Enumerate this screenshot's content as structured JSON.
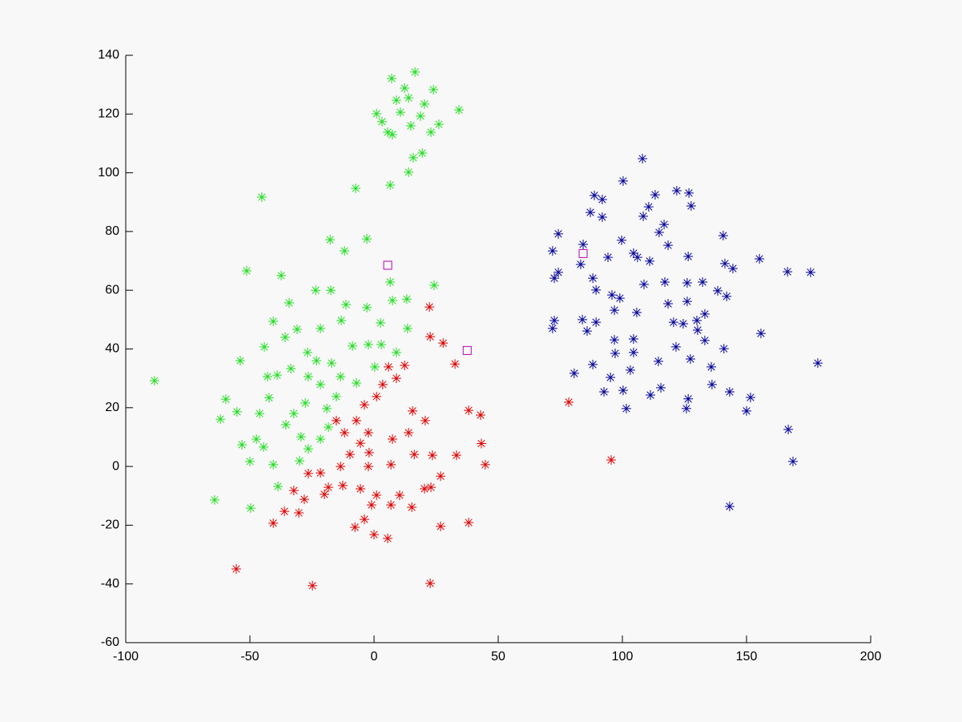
{
  "chart_data": {
    "type": "scatter",
    "xlim": [
      -100,
      200
    ],
    "ylim": [
      -60,
      140
    ],
    "xticks": [
      -100,
      -50,
      0,
      50,
      100,
      150,
      200
    ],
    "yticks": [
      -60,
      -40,
      -20,
      0,
      20,
      40,
      60,
      80,
      100,
      120,
      140
    ],
    "grid": false,
    "series": [
      {
        "color": "#22dd22",
        "marker": "star",
        "x": [
          16.5,
          7.1,
          23.9,
          34.2,
          1,
          3.2,
          7.4,
          13.9,
          20.3,
          14.8,
          19.4,
          15.8,
          13.9,
          -7.4,
          6.5,
          -45.2,
          26.1,
          10.6,
          18.7,
          12.3,
          5.5,
          22.9,
          9,
          -88.4,
          -64.2,
          -49.7,
          -51.3,
          -17.7,
          -2.9,
          -11.9,
          -37.4,
          -34.2,
          -23.5,
          -17.4,
          6.5,
          24.2,
          13.2,
          7.4,
          -2.9,
          -11.3,
          -40.6,
          -31,
          -21.6,
          -13.2,
          2.6,
          13.5,
          -53.9,
          -44.2,
          -35.8,
          -26.8,
          -17.1,
          -8.7,
          -2.3,
          9,
          -59.7,
          -61.9,
          -55.2,
          -53.2,
          -50,
          -42.3,
          -39,
          -42.9,
          -46.1,
          -44.5,
          -40.6,
          -38.7,
          -35.5,
          -32.3,
          -27.7,
          -26.5,
          -21.6,
          -19,
          -15.2,
          -13.5,
          -29.4,
          -30,
          -26.5,
          -21.6,
          -18.4,
          -7.1,
          0.3,
          2.9,
          -47.4,
          -33.5,
          -23.2
        ],
        "values": [
          134.3,
          132.1,
          128.3,
          121.4,
          120.1,
          117.4,
          113,
          125.5,
          123.4,
          116,
          106.7,
          105.1,
          100.2,
          94.7,
          95.8,
          91.7,
          116.5,
          120.6,
          119.3,
          128.8,
          113.8,
          113.8,
          124.7,
          29.2,
          -11.4,
          -14.2,
          66.6,
          77.2,
          77.5,
          73.4,
          65,
          55.7,
          60,
          60,
          62.8,
          61.7,
          57,
          56.5,
          54.1,
          55.1,
          49.4,
          46.7,
          47,
          49.7,
          48.9,
          47,
          36,
          40.7,
          44,
          38.8,
          35.2,
          41,
          41.5,
          38.8,
          22.9,
          16.1,
          18.6,
          7.4,
          1.7,
          23.4,
          31.1,
          30.6,
          18,
          6.6,
          0.6,
          -6.8,
          14.2,
          18,
          21.6,
          30.6,
          27.9,
          19.7,
          23.8,
          30.6,
          10.1,
          1.9,
          6,
          9.3,
          13.4,
          28.4,
          33.9,
          41.5,
          9.3,
          33.3,
          36
        ]
      },
      {
        "color": "#dd0000",
        "marker": "star",
        "x": [
          -55.5,
          -24.8,
          22.6,
          38.1,
          26.8,
          -40.6,
          44.8,
          43.2,
          42.9,
          38.1,
          32.6,
          22.3,
          22.6,
          27.8,
          78.4,
          95.5,
          26.8,
          33.2,
          23.5,
          20.6,
          15.5,
          9,
          5.8,
          12.3,
          3.5,
          1,
          -3.9,
          -7.1,
          -2.3,
          -5.5,
          -11.9,
          -15.2,
          -9.7,
          -2,
          7.4,
          13.9,
          16.2,
          6.8,
          -2.3,
          -13.5,
          -21.6,
          -26.5,
          -32.3,
          -28.1,
          -18.4,
          -12.6,
          -5.5,
          1,
          10.3,
          15.2,
          20.3,
          6.8,
          -1,
          -3.9,
          -7.7,
          0,
          5.5,
          -36.1,
          -30.3,
          -20,
          22.9
        ],
        "values": [
          -34.9,
          -40.6,
          -39.8,
          -19.1,
          -20.4,
          -19.3,
          0.6,
          7.8,
          17.5,
          19.1,
          34.9,
          54.3,
          44.2,
          42,
          21.9,
          2.2,
          -3.3,
          3.8,
          3.8,
          15.6,
          18.9,
          30,
          33.9,
          34.4,
          27.9,
          23.8,
          21,
          15.6,
          11.5,
          7.9,
          11.5,
          15.6,
          4.1,
          4.7,
          9.3,
          11.5,
          4.1,
          0.6,
          0,
          0,
          -2.2,
          -2.4,
          -8.2,
          -11.2,
          -7.1,
          -6.5,
          -7.6,
          -9.8,
          -9.8,
          -13.9,
          -7.6,
          -13.1,
          -13.1,
          -18,
          -20.7,
          -23.2,
          -24.5,
          -15.3,
          -15.8,
          -9.5,
          -7.1
        ]
      },
      {
        "color": "#000099",
        "marker": "star",
        "x": [
          108.1,
          100.3,
          88.7,
          91.9,
          110.6,
          113.2,
          121.9,
          126.8,
          127.7,
          74.2,
          87.1,
          91.9,
          84.2,
          71.9,
          83.2,
          74.2,
          72.6,
          88.1,
          89.4,
          99.7,
          108.4,
          116.8,
          114.8,
          118.4,
          94.2,
          104.5,
          106.1,
          111,
          126.5,
          140.6,
          141.3,
          144.5,
          155.2,
          166.5,
          175.8,
          108.7,
          117.1,
          126.1,
          132.3,
          138.4,
          142,
          95.8,
          99,
          118.4,
          126.1,
          96.8,
          105.8,
          133.2,
          130,
          72.6,
          71.9,
          83.9,
          89.4,
          85.8,
          124.5,
          120.6,
          130.3,
          155.8,
          96.8,
          104.5,
          121.6,
          140.9,
          133.2,
          97.1,
          104.5,
          88.1,
          114.5,
          127.4,
          135.8,
          178.7,
          103.2,
          80.6,
          95.2,
          136.1,
          115.5,
          92.6,
          100.3,
          143.2,
          111.3,
          126.5,
          151.6,
          101.6,
          125.8,
          150,
          166.8,
          168.7,
          143.2
        ],
        "values": [
          104.8,
          97.2,
          92.3,
          90.9,
          88.4,
          92.5,
          93.9,
          93.1,
          88.7,
          79.2,
          86.5,
          84.9,
          75.6,
          73.4,
          68.8,
          66.1,
          64.1,
          64.1,
          60.1,
          77,
          85.2,
          82.4,
          79.7,
          75.3,
          71.2,
          72.6,
          71.2,
          69.9,
          71.5,
          78.6,
          69.1,
          67.4,
          70.7,
          66.3,
          66.1,
          62,
          62.8,
          62.5,
          62.8,
          59.8,
          57.9,
          58.4,
          57.3,
          55.4,
          56.2,
          53.2,
          52.4,
          51.9,
          49.7,
          49.7,
          47,
          50,
          49.1,
          46.1,
          48.6,
          49.1,
          46.4,
          45.3,
          43.1,
          43.4,
          40.7,
          40.1,
          42.9,
          38.5,
          38.8,
          34.7,
          35.8,
          36.6,
          33.9,
          35.2,
          32.8,
          31.7,
          30.3,
          27.9,
          26.8,
          25.4,
          25.9,
          25.4,
          24.3,
          23,
          23.5,
          19.7,
          19.7,
          18.9,
          12.6,
          1.7,
          -13.6
        ]
      },
      {
        "color": "#bb00bb",
        "marker": "square",
        "x": [
          5.5,
          37.5,
          84.2
        ],
        "values": [
          68.5,
          39.5,
          72.5
        ]
      }
    ]
  }
}
